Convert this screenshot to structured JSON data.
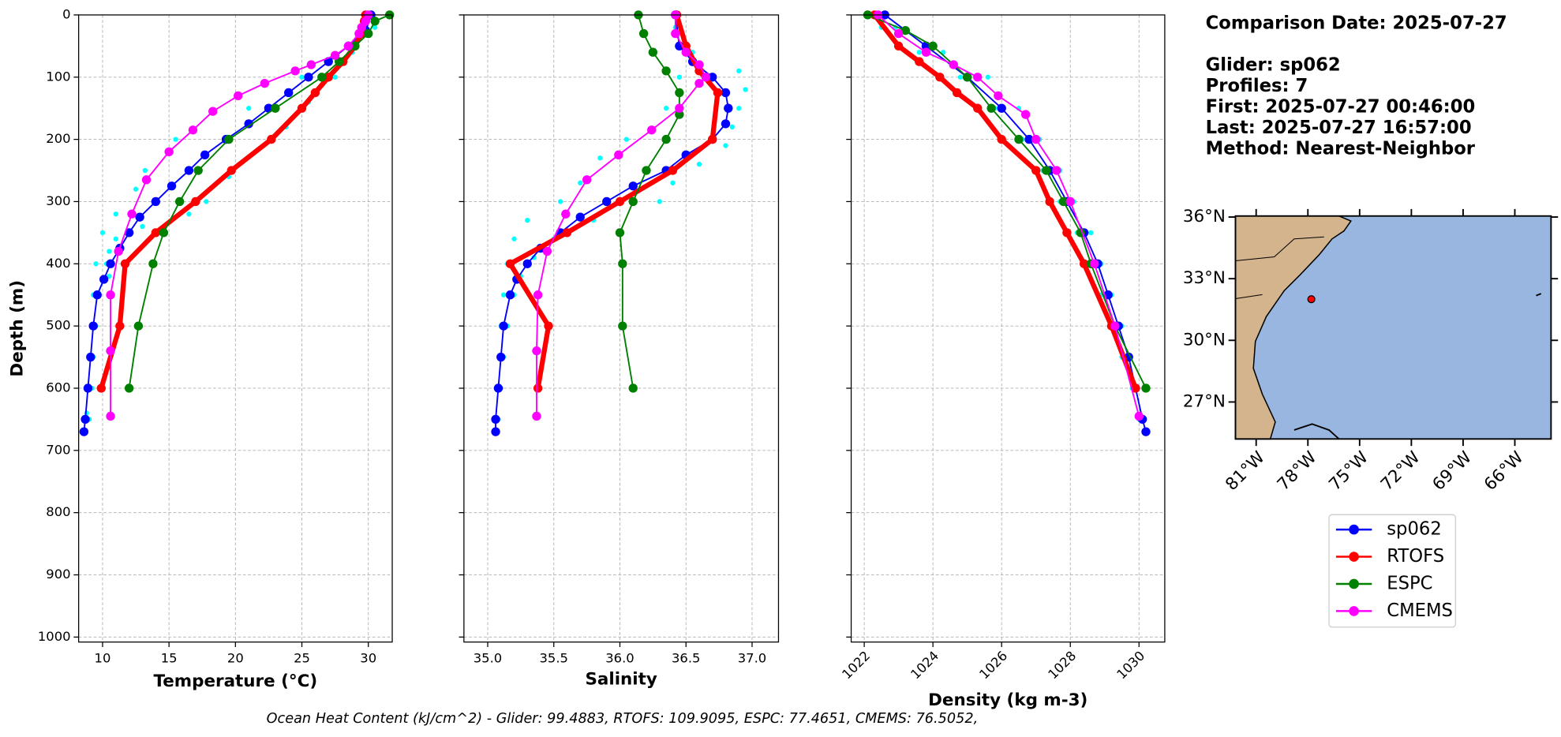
{
  "chart_data": [
    {
      "type": "line",
      "xlabel": "Temperature (°C)",
      "ylabel": "Depth (m)",
      "xlim": [
        8.2,
        31.8
      ],
      "ylim": [
        1008,
        0
      ],
      "xticks": [
        10,
        15,
        20,
        25,
        30
      ],
      "yticks": [
        0,
        100,
        200,
        300,
        400,
        500,
        600,
        700,
        800,
        900,
        1000
      ],
      "ytick_labels": true,
      "grid": true,
      "series": [
        {
          "color": "#00ffff",
          "line": false,
          "marker_size": 2.5,
          "linewidth": 0,
          "y": [
            20,
            60,
            100,
            140,
            180,
            220,
            260,
            300,
            320,
            340,
            360,
            380,
            400,
            420,
            450,
            500,
            550,
            600,
            650
          ],
          "x": [
            30.5,
            28.8,
            27.5,
            25.5,
            23.8,
            21.5,
            19.5,
            17.8,
            16.5,
            13,
            11,
            10.5,
            10.3,
            10.5,
            9.6,
            9.5,
            9.3,
            9.2,
            9.0
          ]
        },
        {
          "color": "#00ffff",
          "line": false,
          "marker_size": 2.5,
          "linewidth": 0,
          "y": [
            100,
            150,
            200,
            250,
            280,
            320,
            350,
            400,
            450,
            500,
            550,
            600,
            640
          ],
          "x": [
            25.0,
            21.0,
            15.5,
            13.2,
            12.5,
            11.0,
            10.0,
            9.5,
            9.3,
            9.2,
            9.0,
            8.9,
            8.8
          ]
        },
        {
          "name": "sp062",
          "color": "#0000ff",
          "line": true,
          "marker_size": 4.5,
          "linewidth": 1.5,
          "y": [
            0,
            25,
            50,
            75,
            100,
            125,
            150,
            175,
            200,
            225,
            250,
            275,
            300,
            325,
            350,
            375,
            400,
            425,
            450,
            500,
            550,
            600,
            650,
            670
          ],
          "x": [
            30.2,
            29.8,
            28.5,
            27.0,
            25.5,
            24.0,
            22.5,
            21.0,
            19.3,
            17.7,
            16.5,
            15.2,
            14.0,
            12.8,
            12.0,
            11.3,
            10.6,
            10.1,
            9.6,
            9.3,
            9.1,
            8.9,
            8.7,
            8.6
          ]
        },
        {
          "name": "RTOFS",
          "color": "#ff0000",
          "line": true,
          "marker_size": 4.5,
          "linewidth": 5,
          "y": [
            0,
            10,
            30,
            50,
            75,
            100,
            125,
            150,
            200,
            250,
            300,
            350,
            400,
            500,
            600
          ],
          "x": [
            29.8,
            29.7,
            29.5,
            29.0,
            28.1,
            27.0,
            26.0,
            25.0,
            22.7,
            19.7,
            17.0,
            14.0,
            11.7,
            11.3,
            9.9
          ]
        },
        {
          "name": "ESPC",
          "color": "#008000",
          "line": true,
          "marker_size": 4.5,
          "linewidth": 1.5,
          "y": [
            0,
            10,
            30,
            50,
            75,
            100,
            150,
            200,
            250,
            300,
            350,
            400,
            500,
            600
          ],
          "x": [
            31.6,
            30.5,
            30.0,
            29.0,
            27.8,
            26.5,
            23.0,
            19.5,
            17.2,
            15.8,
            14.6,
            13.8,
            12.7,
            12.0
          ]
        },
        {
          "name": "CMEMS",
          "color": "#ff00ff",
          "line": true,
          "marker_size": 4.5,
          "linewidth": 1.5,
          "y": [
            0,
            10,
            20,
            30,
            50,
            65,
            80,
            90,
            110,
            130,
            155,
            185,
            220,
            265,
            320,
            380,
            450,
            540,
            645
          ],
          "x": [
            30.0,
            29.8,
            29.5,
            29.3,
            28.5,
            27.5,
            25.7,
            24.5,
            22.2,
            20.2,
            18.3,
            16.8,
            15.0,
            13.3,
            12.2,
            11.2,
            10.6,
            10.6,
            10.6
          ]
        }
      ]
    },
    {
      "type": "line",
      "xlabel": "Salinity",
      "xlim": [
        34.82,
        37.2
      ],
      "ylim": [
        1008,
        0
      ],
      "xticks": [
        {
          "value": 35,
          "label": "35.0"
        },
        35.5,
        {
          "value": 36,
          "label": "36.0"
        },
        36.5,
        {
          "value": 37,
          "label": "37.0"
        }
      ],
      "yticks": [
        0,
        100,
        200,
        300,
        400,
        500,
        600,
        700,
        800,
        900,
        1000
      ],
      "ytick_labels": false,
      "grid": true,
      "series": [
        {
          "color": "#00ffff",
          "line": false,
          "marker_size": 2.5,
          "linewidth": 0,
          "y": [
            20,
            60,
            90,
            120,
            150,
            180,
            210,
            240,
            270,
            300,
            330,
            360,
            390,
            420,
            450,
            500,
            550,
            600,
            650
          ],
          "x": [
            36.42,
            36.55,
            36.9,
            36.95,
            36.9,
            36.85,
            36.8,
            36.6,
            36.4,
            36.3,
            35.8,
            35.5,
            35.35,
            35.25,
            35.2,
            35.15,
            35.12,
            35.1,
            35.08
          ]
        },
        {
          "color": "#00ffff",
          "line": false,
          "marker_size": 2.5,
          "linewidth": 0,
          "y": [
            100,
            150,
            200,
            230,
            270,
            300,
            330,
            360,
            400,
            450,
            500,
            600,
            650
          ],
          "x": [
            36.45,
            36.35,
            36.05,
            35.85,
            35.7,
            35.55,
            35.3,
            35.2,
            35.15,
            35.12,
            35.1,
            35.08,
            35.07
          ]
        },
        {
          "color": "#0000ff",
          "line": true,
          "marker_size": 4.5,
          "linewidth": 1.5,
          "y": [
            0,
            50,
            75,
            100,
            125,
            150,
            175,
            200,
            225,
            250,
            275,
            300,
            325,
            350,
            375,
            400,
            425,
            450,
            500,
            550,
            600,
            650,
            670
          ],
          "x": [
            36.42,
            36.45,
            36.55,
            36.7,
            36.8,
            36.82,
            36.8,
            36.7,
            36.5,
            36.35,
            36.1,
            35.9,
            35.7,
            35.55,
            35.4,
            35.3,
            35.22,
            35.17,
            35.12,
            35.1,
            35.08,
            35.06,
            35.06
          ]
        },
        {
          "color": "#ff0000",
          "line": true,
          "marker_size": 4.5,
          "linewidth": 5,
          "y": [
            0,
            50,
            90,
            125,
            200,
            250,
            300,
            350,
            400,
            500,
            600
          ],
          "x": [
            36.43,
            36.5,
            36.6,
            36.74,
            36.7,
            36.4,
            36.0,
            35.6,
            35.17,
            35.46,
            35.38
          ]
        },
        {
          "color": "#008000",
          "line": true,
          "marker_size": 4.5,
          "linewidth": 1.5,
          "y": [
            0,
            30,
            60,
            90,
            125,
            160,
            200,
            250,
            300,
            350,
            400,
            500,
            600
          ],
          "x": [
            36.14,
            36.18,
            36.25,
            36.35,
            36.45,
            36.45,
            36.35,
            36.2,
            36.1,
            36.0,
            36.02,
            36.02,
            36.1
          ]
        },
        {
          "color": "#ff00ff",
          "line": true,
          "marker_size": 4.5,
          "linewidth": 1.5,
          "y": [
            0,
            30,
            60,
            80,
            100,
            110,
            150,
            185,
            225,
            265,
            320,
            380,
            450,
            540,
            645
          ],
          "x": [
            36.42,
            36.42,
            36.5,
            36.6,
            36.65,
            36.6,
            36.45,
            36.24,
            35.99,
            35.75,
            35.59,
            35.45,
            35.38,
            35.37,
            35.37
          ]
        }
      ]
    },
    {
      "type": "line",
      "xlabel": "Density (kg m-3)",
      "xlim": [
        1021.62,
        1030.75
      ],
      "ylim": [
        1008,
        0
      ],
      "xticks": [
        1022,
        1024,
        1026,
        1028,
        1030
      ],
      "xtick_rotation": 45,
      "yticks": [
        0,
        100,
        200,
        300,
        400,
        500,
        600,
        700,
        800,
        900,
        1000
      ],
      "ytick_labels": false,
      "grid": true,
      "series": [
        {
          "color": "#00ffff",
          "line": false,
          "marker_size": 2.5,
          "linewidth": 0,
          "y": [
            20,
            60,
            100,
            150,
            200,
            250,
            300,
            350,
            400,
            450,
            500,
            550,
            600,
            650
          ],
          "x": [
            1022.9,
            1024.3,
            1025.6,
            1026.5,
            1027.1,
            1027.7,
            1028.1,
            1028.6,
            1028.9,
            1029.2,
            1029.5,
            1029.7,
            1029.9,
            1030.1
          ]
        },
        {
          "color": "#00ffff",
          "line": false,
          "marker_size": 2.5,
          "linewidth": 0,
          "y": [
            20,
            60,
            100,
            150,
            200,
            250,
            300,
            350,
            400,
            450,
            500,
            550,
            600,
            650
          ],
          "x": [
            1022.5,
            1023.6,
            1024.8,
            1025.8,
            1026.6,
            1027.2,
            1027.7,
            1028.2,
            1028.6,
            1028.9,
            1029.2,
            1029.5,
            1029.8,
            1030.0
          ]
        },
        {
          "color": "#0000ff",
          "line": true,
          "marker_size": 4.5,
          "linewidth": 1.5,
          "y": [
            0,
            50,
            100,
            150,
            200,
            250,
            300,
            350,
            400,
            450,
            500,
            550,
            600,
            650,
            670
          ],
          "x": [
            1022.6,
            1023.8,
            1025.0,
            1026.0,
            1026.8,
            1027.4,
            1027.9,
            1028.4,
            1028.8,
            1029.1,
            1029.4,
            1029.7,
            1029.9,
            1030.1,
            1030.2
          ]
        },
        {
          "color": "#ff0000",
          "line": true,
          "marker_size": 4.5,
          "linewidth": 5,
          "y": [
            0,
            50,
            75,
            100,
            125,
            150,
            200,
            250,
            300,
            350,
            400,
            500,
            600
          ],
          "x": [
            1022.3,
            1023.0,
            1023.6,
            1024.2,
            1024.7,
            1025.3,
            1026.0,
            1027.0,
            1027.4,
            1027.9,
            1028.4,
            1029.2,
            1029.9
          ]
        },
        {
          "color": "#008000",
          "line": true,
          "marker_size": 4.5,
          "linewidth": 1.5,
          "y": [
            0,
            25,
            50,
            100,
            150,
            200,
            250,
            300,
            350,
            400,
            500,
            600
          ],
          "x": [
            1022.1,
            1023.2,
            1024.0,
            1025.0,
            1025.7,
            1026.5,
            1027.3,
            1027.8,
            1028.3,
            1028.6,
            1029.3,
            1030.2
          ]
        },
        {
          "color": "#ff00ff",
          "line": true,
          "marker_size": 4.5,
          "linewidth": 1.5,
          "y": [
            0,
            30,
            60,
            80,
            100,
            130,
            160,
            200,
            250,
            300,
            400,
            500,
            645
          ],
          "x": [
            1022.4,
            1023.0,
            1023.8,
            1024.6,
            1025.3,
            1025.9,
            1026.7,
            1027.0,
            1027.6,
            1028.0,
            1028.7,
            1029.3,
            1030.0
          ]
        }
      ]
    },
    {
      "type": "map",
      "lonlim": [
        -82.2,
        -63.9
      ],
      "latlim": [
        25.2,
        36.05
      ],
      "xticks": [
        {
          "value": -81,
          "label": "81°W"
        },
        {
          "value": -78,
          "label": "78°W"
        },
        {
          "value": -75,
          "label": "75°W"
        },
        {
          "value": -72,
          "label": "72°W"
        },
        {
          "value": -69,
          "label": "69°W"
        },
        {
          "value": -66,
          "label": "66°W"
        }
      ],
      "yticks": [
        {
          "value": 36,
          "label": "36°N"
        },
        {
          "value": 33,
          "label": "33°N"
        },
        {
          "value": 30,
          "label": "30°N"
        },
        {
          "value": 27,
          "label": "27°N"
        }
      ],
      "glider_position": {
        "lon": -77.8,
        "lat": 32.0,
        "color": "#ff0000"
      }
    }
  ],
  "info": [
    "Comparison Date: 2025-07-27",
    "Glider: sp062",
    "Profiles: 7",
    "First: 2025-07-27 00:46:00",
    "Last: 2025-07-27 16:57:00",
    "Method: Nearest-Neighbor"
  ],
  "footer": "Ocean Heat Content (kJ/cm^2) - Glider: 99.4883,  RTOFS: 109.9095,  ESPC: 77.4651,  CMEMS: 76.5052,"
}
